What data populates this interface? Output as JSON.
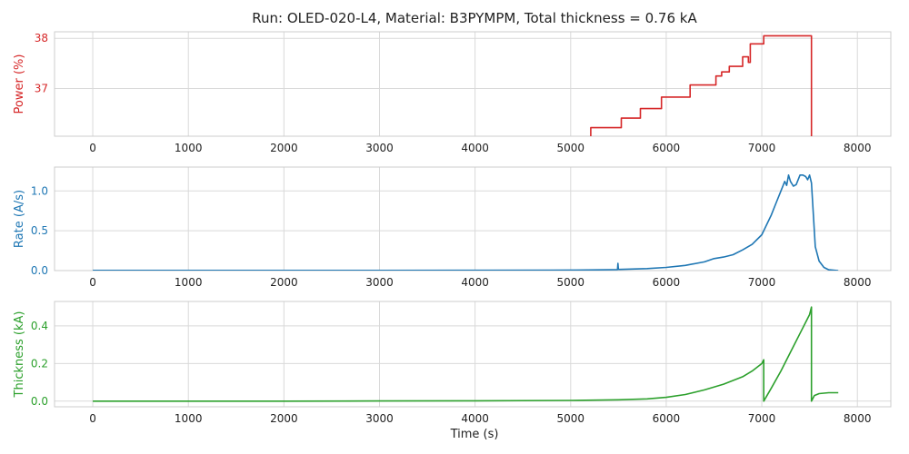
{
  "title": "Run: OLED-020-L4, Material: B3PYMPM, Total thickness = 0.76 kA",
  "xlabel": "Time (s)",
  "chart_data": [
    {
      "type": "line",
      "ylabel": "Power (%)",
      "color": "#d62728",
      "xlim": [
        -400,
        8350
      ],
      "ylim": [
        36.05,
        38.13
      ],
      "xticks": [
        0,
        1000,
        2000,
        3000,
        4000,
        5000,
        6000,
        7000,
        8000
      ],
      "yticks": [
        37,
        38
      ],
      "grid": true,
      "series": [
        {
          "x": [
            5210,
            5210,
            5530,
            5530,
            5730,
            5730,
            5950,
            5950,
            6250,
            6250,
            6520,
            6520,
            6580,
            6580,
            6660,
            6660,
            6800,
            6800,
            6860,
            6860,
            6880,
            6880,
            6880,
            6880,
            7020,
            7020,
            7520,
            7520
          ],
          "y": [
            36.05,
            36.22,
            36.22,
            36.41,
            36.41,
            36.6,
            36.6,
            36.83,
            36.83,
            37.07,
            37.07,
            37.25,
            37.25,
            37.33,
            37.33,
            37.44,
            37.44,
            37.63,
            37.63,
            37.52,
            37.52,
            37.89,
            37.89,
            37.89,
            37.89,
            38.05,
            38.05,
            36.05
          ]
        }
      ]
    },
    {
      "type": "line",
      "ylabel": "Rate (A/s)",
      "color": "#1f77b4",
      "xlim": [
        -400,
        8350
      ],
      "ylim": [
        0,
        1.3
      ],
      "xticks": [
        0,
        1000,
        2000,
        3000,
        4000,
        5000,
        6000,
        7000,
        8000
      ],
      "yticks": [
        0.0,
        0.5,
        1.0
      ],
      "yticklabels": [
        "0.0",
        "0.5",
        "1.0"
      ],
      "grid": true,
      "series": [
        {
          "x": [
            0,
            1000,
            2000,
            3000,
            4000,
            4800,
            5400,
            5490,
            5495,
            5500,
            5520,
            5600,
            5800,
            6000,
            6200,
            6400,
            6500,
            6600,
            6700,
            6800,
            6900,
            7000,
            7100,
            7150,
            7200,
            7240,
            7260,
            7280,
            7300,
            7330,
            7360,
            7400,
            7430,
            7460,
            7480,
            7500,
            7520,
            7540,
            7560,
            7600,
            7650,
            7700,
            7800
          ],
          "y": [
            0.002,
            0.002,
            0.002,
            0.002,
            0.003,
            0.005,
            0.01,
            0.012,
            0.09,
            0.015,
            0.015,
            0.018,
            0.025,
            0.04,
            0.065,
            0.11,
            0.15,
            0.17,
            0.2,
            0.26,
            0.33,
            0.45,
            0.7,
            0.85,
            1.0,
            1.12,
            1.07,
            1.2,
            1.12,
            1.06,
            1.08,
            1.2,
            1.2,
            1.18,
            1.14,
            1.2,
            1.1,
            0.7,
            0.3,
            0.12,
            0.04,
            0.01,
            0.0
          ]
        }
      ]
    },
    {
      "type": "line",
      "ylabel": "Thickness (kA)",
      "color": "#2ca02c",
      "xlim": [
        -400,
        8350
      ],
      "ylim": [
        -0.03,
        0.53
      ],
      "xticks": [
        0,
        1000,
        2000,
        3000,
        4000,
        5000,
        6000,
        7000,
        8000
      ],
      "yticks": [
        0.0,
        0.2,
        0.4
      ],
      "yticklabels": [
        "0.0",
        "0.2",
        "0.4"
      ],
      "grid": true,
      "series": [
        {
          "x": [
            0,
            1000,
            2000,
            3000,
            4000,
            5000,
            5500,
            5800,
            6000,
            6200,
            6400,
            6600,
            6800,
            6900,
            7000,
            7020,
            7020,
            7100,
            7200,
            7300,
            7400,
            7500,
            7520,
            7520,
            7550,
            7600,
            7700,
            7800
          ],
          "y": [
            0.0,
            0.0,
            0.0,
            0.001,
            0.002,
            0.004,
            0.007,
            0.012,
            0.02,
            0.035,
            0.06,
            0.09,
            0.13,
            0.16,
            0.2,
            0.22,
            0.0,
            0.07,
            0.16,
            0.26,
            0.36,
            0.46,
            0.5,
            0.0,
            0.03,
            0.04,
            0.045,
            0.045
          ]
        }
      ]
    }
  ]
}
